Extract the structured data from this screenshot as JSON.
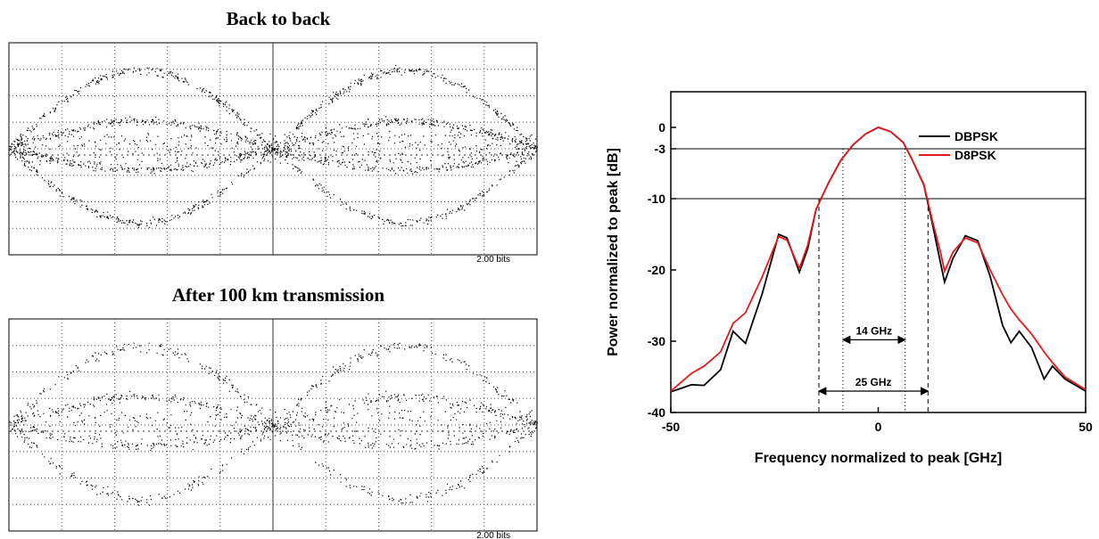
{
  "eye_diagrams": [
    {
      "title": "Back to back",
      "scale_label": "2.00 bits"
    },
    {
      "title": "After 100 km transmission",
      "scale_label": "2.00 bits"
    }
  ],
  "chart_data": {
    "type": "line",
    "xlabel": "Frequency normalized to peak [GHz]",
    "ylabel": "Power normalized to peak [dB]",
    "xlim": [
      -50,
      50
    ],
    "xticks": [
      -50,
      0,
      50
    ],
    "ylim": [
      -40,
      5
    ],
    "yticks": [
      0,
      -3,
      -10,
      -20,
      -30,
      -40
    ],
    "hlines": [
      -3,
      -10
    ],
    "legend": "upper right",
    "series": [
      {
        "name": "DBPSK",
        "color": "#000000",
        "x": [
          -50,
          -45,
          -42,
          -38,
          -35,
          -32,
          -28,
          -24,
          -22,
          -19,
          -17,
          -15,
          -12,
          -9,
          -6,
          -3,
          0,
          3,
          6,
          8,
          11,
          13,
          15,
          16,
          18,
          21,
          24,
          27,
          30,
          32,
          34,
          37,
          40,
          42,
          45,
          50
        ],
        "values": [
          -37.1,
          -36.1,
          -36.2,
          -34,
          -28.6,
          -30.3,
          -23.4,
          -15,
          -15.5,
          -20.3,
          -17,
          -11.5,
          -7.8,
          -4.6,
          -2.4,
          -0.9,
          0,
          -0.6,
          -2.1,
          -4.3,
          -8.1,
          -13.4,
          -19,
          -21.7,
          -18.4,
          -15.2,
          -15.9,
          -20.9,
          -27.8,
          -30.2,
          -28.6,
          -30.9,
          -35.3,
          -33.5,
          -35.3,
          -37
        ]
      },
      {
        "name": "D8PSK",
        "color": "#e31a1c",
        "x": [
          -50,
          -45,
          -42,
          -38,
          -35,
          -32,
          -28,
          -24,
          -22,
          -19,
          -17,
          -15,
          -12,
          -9,
          -6,
          -3,
          0,
          3,
          6,
          8,
          11,
          13,
          15,
          16,
          18,
          21,
          24,
          27,
          30,
          32,
          34,
          37,
          40,
          42,
          45,
          50
        ],
        "values": [
          -37,
          -34.5,
          -33.5,
          -31.5,
          -27.5,
          -26,
          -21,
          -15.3,
          -15.8,
          -19.8,
          -16.5,
          -11.5,
          -7.8,
          -4.6,
          -2.4,
          -0.9,
          0,
          -0.6,
          -2.1,
          -4.3,
          -8,
          -13,
          -17.5,
          -20.2,
          -17.5,
          -15.5,
          -16.2,
          -20,
          -23.5,
          -25.5,
          -27,
          -29,
          -31.5,
          -33,
          -35,
          -36.8
        ]
      }
    ],
    "markers": [
      {
        "label": "14 GHz",
        "x0": -8.5,
        "x1": 6.5,
        "y": -29.8,
        "top": -3,
        "style": "dotted"
      },
      {
        "label": "25 GHz",
        "x0": -14.3,
        "x1": 12,
        "y": -37,
        "top": -10,
        "style": "dashed"
      }
    ]
  }
}
